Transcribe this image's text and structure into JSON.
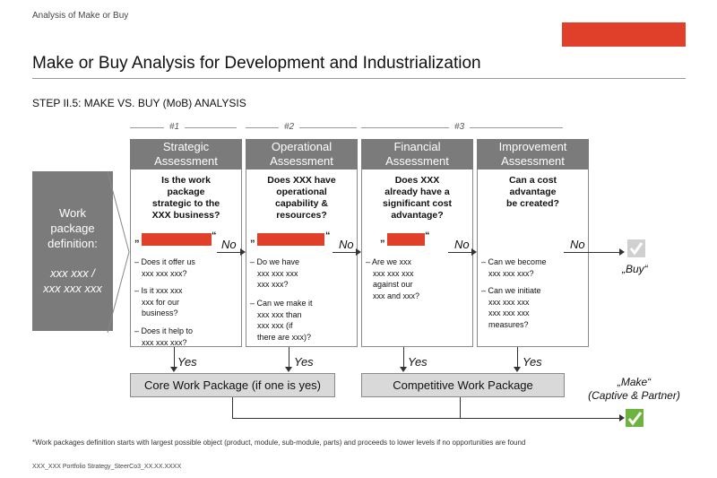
{
  "header": {
    "breadcrumb": "Analysis of Make or Buy",
    "title": "Make or Buy Analysis for Development and Industrialization",
    "accent_color": "#e0402a"
  },
  "step": {
    "subtitle": "STEP II.5: MAKE VS. BUY (MoB) ANALYSIS"
  },
  "groups": [
    "#1",
    "#2",
    "#3"
  ],
  "work_package": {
    "label": [
      "Work",
      "package",
      "definition:"
    ],
    "value": [
      "xxx xxx /",
      "xxx xxx xxx"
    ]
  },
  "columns": [
    {
      "header": [
        "Strategic",
        "Assessment"
      ],
      "question": [
        "Is the work",
        "package",
        "strategic to the",
        "XXX business?"
      ],
      "open_quote": "„",
      "close_quote": "“",
      "bullets": [
        [
          "Does it offer us",
          "xxx xxx xxx?"
        ],
        [
          "Is it xxx xxx",
          "xxx for our",
          "business?"
        ],
        [
          "Does it help to",
          "xxx xxx xxx?"
        ]
      ]
    },
    {
      "header": [
        "Operational",
        "Assessment"
      ],
      "question": [
        "Does XXX have",
        "operational",
        "capability &",
        "resources?"
      ],
      "open_quote": "„",
      "close_quote": "“",
      "bullets": [
        [
          "Do we have",
          "xxx xxx xxx",
          "xxx xxx?"
        ],
        [
          "Can we make it",
          "xxx xxx than",
          "xxx xxx (if",
          "there are xxx)?"
        ]
      ]
    },
    {
      "header": [
        "Financial",
        "Assessment"
      ],
      "question": [
        "Does XXX",
        "already have a",
        "significant cost",
        "advantage?"
      ],
      "open_quote": "„",
      "close_quote": "“",
      "bullets": [
        [
          "Are we xxx",
          "xxx xxx xxx",
          "against our",
          "xxx and xxx?"
        ]
      ]
    },
    {
      "header": [
        "Improvement",
        "Assessment"
      ],
      "question": [
        "Can a cost",
        "advantage",
        "be created?"
      ],
      "open_quote": "",
      "close_quote": "",
      "bullets": [
        [
          "Can we become",
          "xxx xxx xxx?"
        ],
        [
          "Can we initiate",
          "xxx xxx xxx",
          "xxx xxx xxx",
          "measures?"
        ]
      ]
    }
  ],
  "flow": {
    "no_label": "No",
    "yes_label": "Yes",
    "bullet_marker": "–"
  },
  "packages": {
    "core": "Core Work Package (if one is yes)",
    "competitive": "Competitive Work Package"
  },
  "outcomes": {
    "buy": "„Buy“",
    "make": [
      "„Make“",
      "(Captive & Partner)"
    ],
    "buy_check_color": "#d0d0d0",
    "make_check_color": "#6db33f"
  },
  "footnote": "*Work packages definition starts with largest possible object (product, module, sub-module, parts) and proceeds to lower levels if no opportunities are found",
  "doc_id": "XXX_XXX Portfolio Strategy_SteerCo3_XX.XX.XXXX"
}
